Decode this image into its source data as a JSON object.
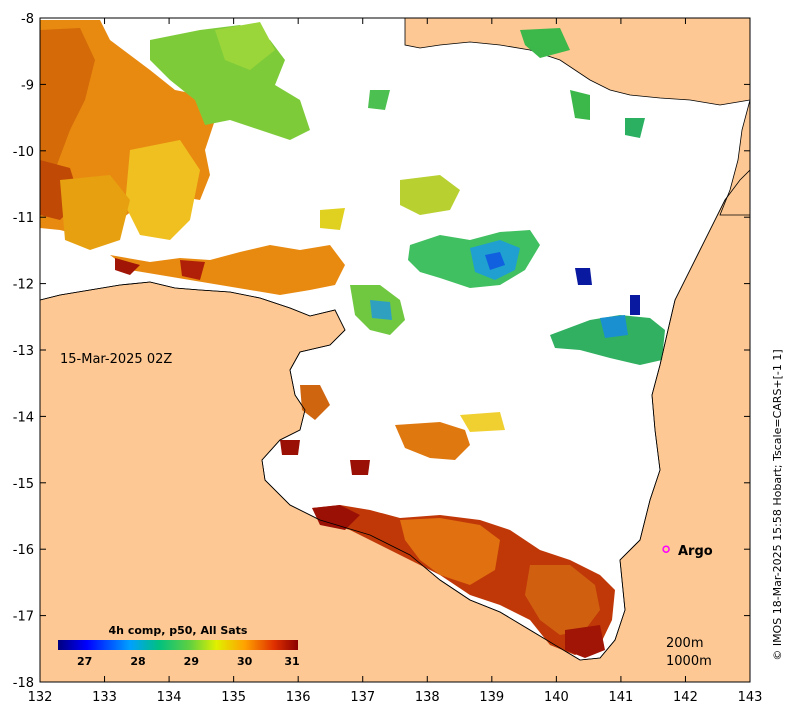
{
  "map": {
    "timestamp": "15-Mar-2025 02Z",
    "credit": "© IMOS 18-Mar-2025 15:58 Hobart; Tscale=CARS+[-1 1]",
    "depth_labels": [
      "200m",
      "1000m"
    ],
    "argo": {
      "label": "Argo",
      "lon": 141.7,
      "lat": -16.0,
      "color": "#ff00ff"
    },
    "axes": {
      "lon_range": [
        132,
        143
      ],
      "lat_range": [
        -18,
        -8
      ],
      "lon_ticks": [
        "132",
        "133",
        "134",
        "135",
        "136",
        "137",
        "138",
        "139",
        "140",
        "141",
        "142",
        "143"
      ],
      "lat_ticks": [
        "-8",
        "-9",
        "-10",
        "-11",
        "-12",
        "-13",
        "-14",
        "-15",
        "-16",
        "-17",
        "-18"
      ]
    },
    "colorbar": {
      "title": "4h comp, p50, All Sats",
      "range": [
        26.5,
        31.0
      ],
      "ticks": [
        "27",
        "28",
        "29",
        "30",
        "31"
      ],
      "colors": [
        "#00007f",
        "#0000ff",
        "#0080ff",
        "#00ffff",
        "#80ff80",
        "#ffff00",
        "#ff8000",
        "#ff0000",
        "#7f0000"
      ]
    },
    "land_color": "#fdc893"
  }
}
